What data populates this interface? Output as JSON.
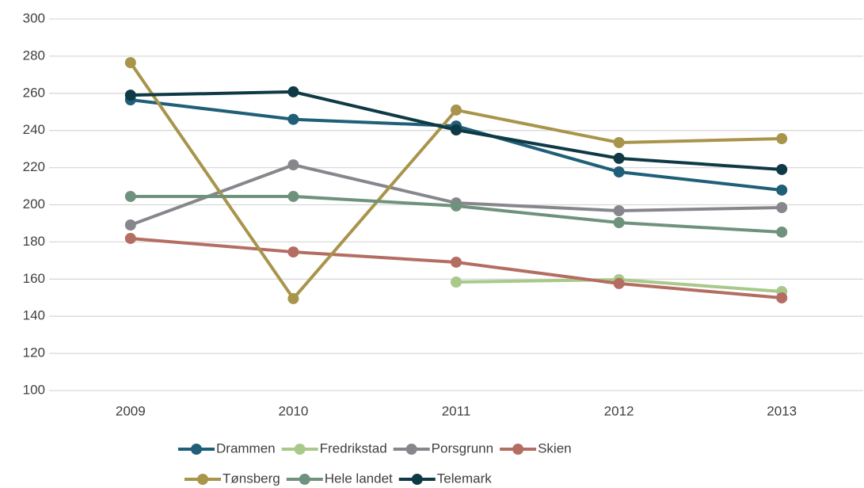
{
  "chart_data": {
    "type": "line",
    "categories": [
      "2009",
      "2010",
      "2011",
      "2012",
      "2013"
    ],
    "series": [
      {
        "name": "Drammen",
        "color": "#1f5f77",
        "values": [
          256.5,
          246,
          242.4,
          217.7,
          207.9
        ]
      },
      {
        "name": "Fredrikstad",
        "color": "#a8c98a",
        "values": [
          null,
          null,
          158.4,
          159.7,
          153.3
        ]
      },
      {
        "name": "Porsgrunn",
        "color": "#86868c",
        "values": [
          189.1,
          221.5,
          201,
          196.8,
          198.5
        ]
      },
      {
        "name": "Skien",
        "color": "#b46d62",
        "values": [
          181.9,
          174.6,
          169.1,
          157.6,
          149.9
        ]
      },
      {
        "name": "Tønsberg",
        "color": "#a8944a",
        "values": [
          276.5,
          149.5,
          251,
          233.5,
          235.6
        ]
      },
      {
        "name": "Hele landet",
        "color": "#6f927c",
        "values": [
          204.5,
          204.5,
          199.4,
          190.4,
          185.3
        ]
      },
      {
        "name": "Telemark",
        "color": "#0f3a45",
        "values": [
          259,
          260.8,
          240.3,
          225,
          219
        ]
      }
    ],
    "ylim": [
      100,
      300
    ],
    "yticks": [
      100,
      120,
      140,
      160,
      180,
      200,
      220,
      240,
      260,
      280,
      300
    ],
    "grid": true,
    "legend": "bottom"
  }
}
